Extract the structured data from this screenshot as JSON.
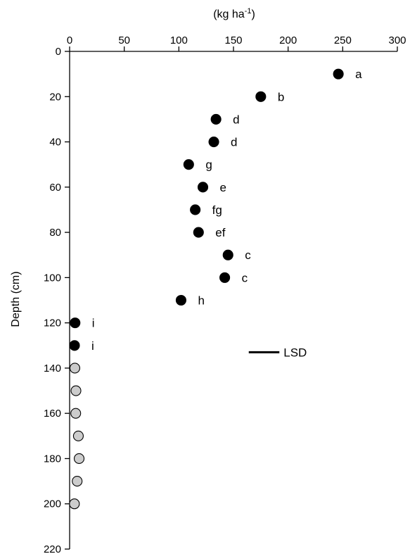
{
  "chart_data": {
    "type": "scatter",
    "xlabel": {
      "text": "(kg ha",
      "superscript": "-1",
      "close": ")"
    },
    "ylabel": "Depth (cm)",
    "xlim": [
      0,
      300
    ],
    "ylim": [
      0,
      220
    ],
    "y_inverted": true,
    "x_axis_position": "top",
    "x_ticks": [
      0,
      50,
      100,
      150,
      200,
      250,
      300
    ],
    "y_ticks": [
      0,
      20,
      40,
      60,
      80,
      100,
      120,
      140,
      160,
      180,
      200,
      220
    ],
    "grid": false,
    "colors": {
      "filled": "#000000",
      "open": "#cccccc"
    },
    "series": [
      {
        "style": "filled",
        "points": [
          {
            "x": 246,
            "y": 10,
            "label": "a"
          },
          {
            "x": 175,
            "y": 20,
            "label": "b"
          },
          {
            "x": 134,
            "y": 30,
            "label": "d"
          },
          {
            "x": 132,
            "y": 40,
            "label": "d"
          },
          {
            "x": 109,
            "y": 50,
            "label": "g"
          },
          {
            "x": 122,
            "y": 60,
            "label": "e"
          },
          {
            "x": 115,
            "y": 70,
            "label": "fg"
          },
          {
            "x": 118,
            "y": 80,
            "label": "ef"
          },
          {
            "x": 145,
            "y": 90,
            "label": "c"
          },
          {
            "x": 142,
            "y": 100,
            "label": "c"
          },
          {
            "x": 102,
            "y": 110,
            "label": "h"
          },
          {
            "x": 5,
            "y": 120,
            "label": "i"
          },
          {
            "x": 4.5,
            "y": 130,
            "label": "i"
          }
        ]
      },
      {
        "style": "open",
        "points": [
          {
            "x": 4.8,
            "y": 140
          },
          {
            "x": 5.8,
            "y": 150
          },
          {
            "x": 5.6,
            "y": 160
          },
          {
            "x": 8,
            "y": 170
          },
          {
            "x": 8.7,
            "y": 180
          },
          {
            "x": 6.9,
            "y": 190
          },
          {
            "x": 4.4,
            "y": 200
          }
        ]
      }
    ],
    "lsd": {
      "label": "LSD",
      "x_start": 164,
      "x_end": 192,
      "y": 133
    }
  }
}
